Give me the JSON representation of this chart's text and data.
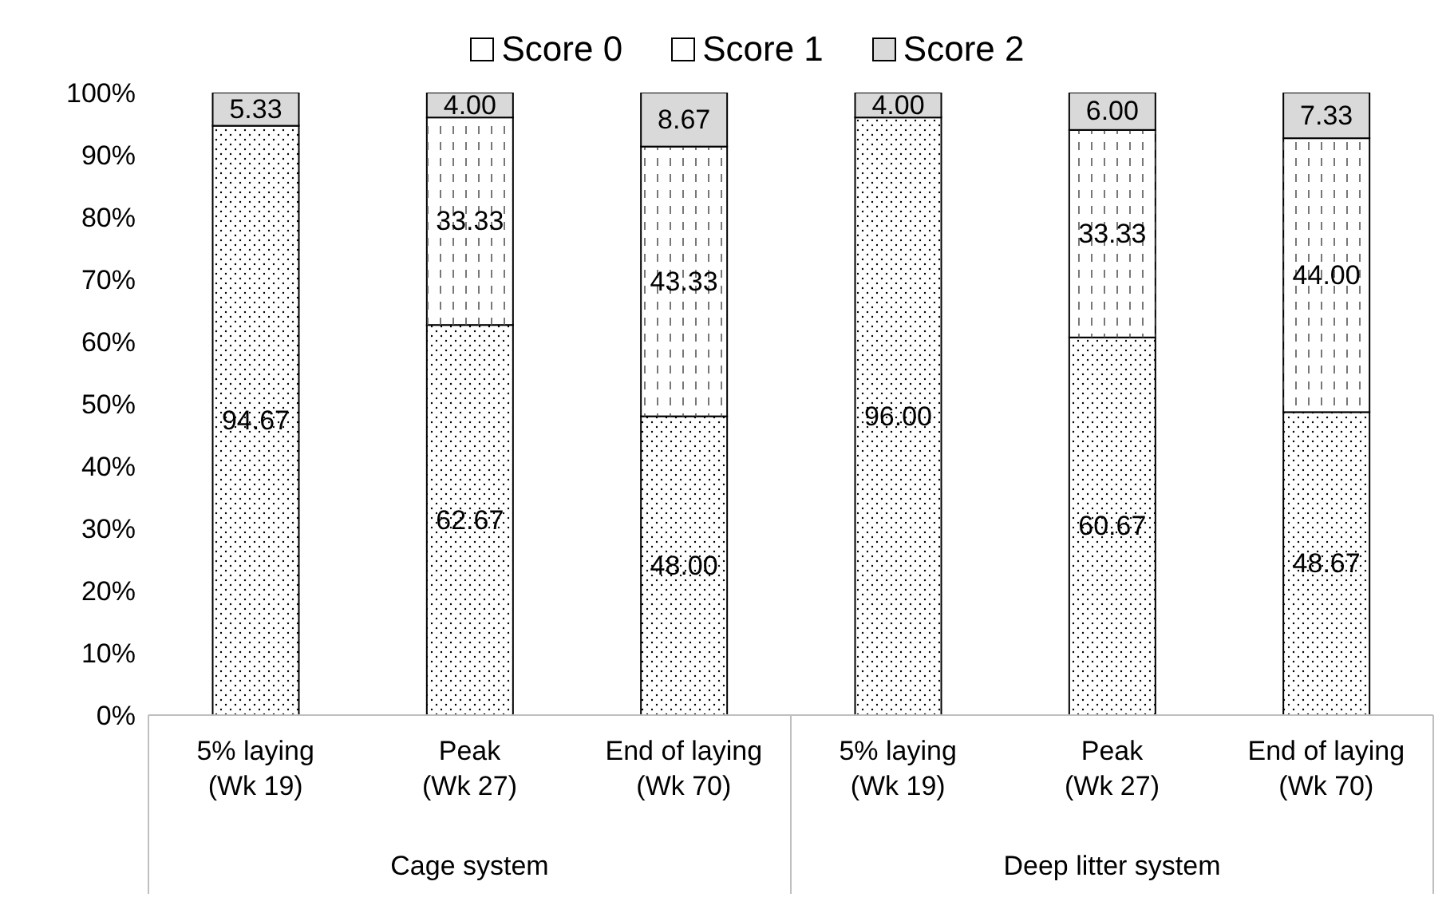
{
  "chart_data": {
    "type": "bar",
    "stacked": true,
    "categories": [
      "5% laying\n(Wk 19)",
      "Peak\n(Wk 27)",
      "End of laying\n(Wk 70)",
      "5% laying\n(Wk 19)",
      "Peak\n(Wk 27)",
      "End of laying\n(Wk 70)"
    ],
    "series": [
      {
        "name": "Score 0",
        "color": "#ffffff",
        "values": [
          94.67,
          62.67,
          48.0,
          96.0,
          60.67,
          48.67
        ],
        "value_labels": [
          "94.67",
          "62.67",
          "48.00",
          "96.00",
          "60.67",
          "48.67"
        ]
      },
      {
        "name": "Score 1",
        "color": "#ffffff",
        "values": [
          0,
          33.33,
          43.33,
          0,
          33.33,
          44.0
        ],
        "value_labels": [
          null,
          "33.33",
          "43.33",
          null,
          "33.33",
          "44.00"
        ]
      },
      {
        "name": "Score 2",
        "color": "#d9d9d9",
        "values": [
          5.33,
          4.0,
          8.67,
          4.0,
          6.0,
          7.33
        ],
        "value_labels": [
          "5.33",
          "4.00",
          "8.67",
          "4.00",
          "6.00",
          "7.33"
        ]
      }
    ],
    "ylim": [
      0,
      100
    ],
    "yticks": [
      {
        "value": 0,
        "label": "0%"
      },
      {
        "value": 10,
        "label": "10%"
      },
      {
        "value": 20,
        "label": "20%"
      },
      {
        "value": 30,
        "label": "30%"
      },
      {
        "value": 40,
        "label": "40%"
      },
      {
        "value": 50,
        "label": "50%"
      },
      {
        "value": 60,
        "label": "60%"
      },
      {
        "value": 70,
        "label": "70%"
      },
      {
        "value": 80,
        "label": "80%"
      },
      {
        "value": 90,
        "label": "90%"
      },
      {
        "value": 100,
        "label": "100%"
      }
    ],
    "annotations": [
      "Cage system",
      "Deep litter system"
    ],
    "legend": "top",
    "grid": false
  }
}
